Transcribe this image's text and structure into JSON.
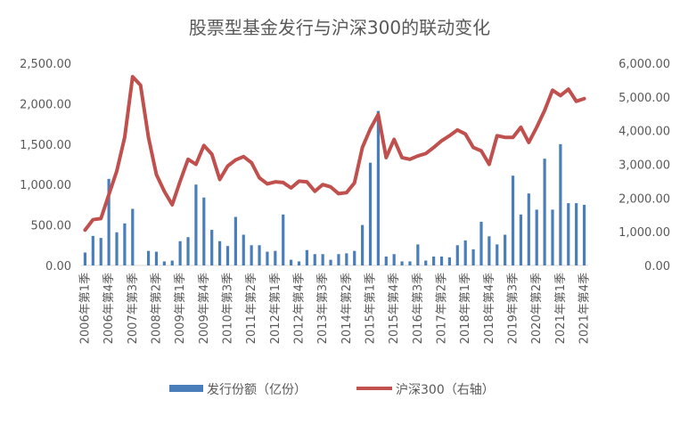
{
  "chart_data": {
    "type": "bar",
    "title": "股票型基金发行与沪深300的联动变化",
    "colors": {
      "bar": "#4a7ebb",
      "line": "#c0504d",
      "axis": "#d9d9d9",
      "text": "#595959"
    },
    "legend_position": "bottom",
    "grid": false,
    "y_left": {
      "ylim": [
        0,
        2500
      ],
      "ticks": [
        "0.00",
        "500.00",
        "1,000.00",
        "1,500.00",
        "2,000.00",
        "2,500.00"
      ]
    },
    "y_right": {
      "ylim": [
        0,
        6000
      ],
      "ticks": [
        "0.00",
        "1,000.00",
        "2,000.00",
        "3,000.00",
        "4,000.00",
        "5,000.00",
        "6,000.00"
      ]
    },
    "x_tick_labels": [
      "2006年第1季",
      "2006年第4季",
      "2007年第3季",
      "2008年第2季",
      "2009年第1季",
      "2009年第4季",
      "2010年第3季",
      "2011年第2季",
      "2012年第1季",
      "2012年第4季",
      "2013年第3季",
      "2014年第2季",
      "2015年第1季",
      "2015年第4季",
      "2016年第3季",
      "2017年第2季",
      "2018年第1季",
      "2018年第4季",
      "2019年第3季",
      "2020年第2季",
      "2021年第1季",
      "2021年第4季"
    ],
    "x_tick_every": 3,
    "series": [
      {
        "name": "发行份额（亿份）",
        "type": "bar",
        "axis": "left",
        "values": [
          160,
          365,
          340,
          1070,
          410,
          520,
          700,
          0,
          180,
          170,
          50,
          60,
          300,
          350,
          1000,
          840,
          440,
          300,
          240,
          600,
          380,
          250,
          250,
          170,
          180,
          630,
          70,
          50,
          190,
          140,
          140,
          70,
          140,
          150,
          180,
          500,
          1270,
          1910,
          110,
          140,
          50,
          50,
          260,
          60,
          110,
          110,
          100,
          250,
          310,
          200,
          540,
          360,
          260,
          380,
          1110,
          630,
          890,
          690,
          1320,
          690,
          1500,
          770,
          770,
          750
        ]
      },
      {
        "name": "沪深300（右轴）",
        "type": "line",
        "axis": "right",
        "values": [
          1050,
          1360,
          1390,
          2100,
          2800,
          3800,
          5600,
          5350,
          3800,
          2700,
          2200,
          1800,
          2500,
          3150,
          3000,
          3560,
          3300,
          2550,
          2950,
          3130,
          3230,
          3050,
          2600,
          2420,
          2480,
          2460,
          2300,
          2500,
          2480,
          2200,
          2400,
          2330,
          2130,
          2160,
          2450,
          3500,
          4050,
          4480,
          3200,
          3740,
          3200,
          3150,
          3250,
          3320,
          3500,
          3700,
          3850,
          4020,
          3900,
          3500,
          3400,
          3000,
          3850,
          3800,
          3800,
          4100,
          3650,
          4100,
          4600,
          5200,
          5040,
          5230,
          4870,
          4950
        ]
      }
    ]
  }
}
